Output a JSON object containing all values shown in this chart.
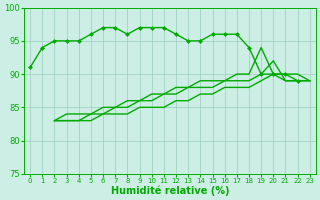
{
  "x": [
    0,
    1,
    2,
    3,
    4,
    5,
    6,
    7,
    8,
    9,
    10,
    11,
    12,
    13,
    14,
    15,
    16,
    17,
    18,
    19,
    20,
    21,
    22,
    23
  ],
  "series1": [
    91,
    94,
    95,
    95,
    95,
    96,
    97,
    97,
    96,
    97,
    97,
    97,
    96,
    95,
    95,
    96,
    96,
    96,
    94,
    90,
    90,
    90,
    89,
    null
  ],
  "series2": [
    null,
    null,
    83,
    84,
    84,
    84,
    85,
    85,
    86,
    86,
    87,
    87,
    88,
    88,
    89,
    89,
    89,
    90,
    90,
    94,
    90,
    90,
    90,
    89
  ],
  "series3": [
    null,
    null,
    83,
    83,
    83,
    84,
    84,
    85,
    85,
    86,
    86,
    87,
    87,
    88,
    88,
    88,
    89,
    89,
    89,
    90,
    92,
    89,
    89,
    89
  ],
  "series4": [
    null,
    null,
    83,
    83,
    83,
    83,
    84,
    84,
    84,
    85,
    85,
    85,
    86,
    86,
    87,
    87,
    88,
    88,
    88,
    89,
    90,
    89,
    89,
    89
  ],
  "line_color": "#00aa00",
  "marker_color": "#00aa00",
  "bg_color": "#cceee4",
  "grid_color": "#99ccbb",
  "axis_color": "#00aa00",
  "xlabel": "Humidité relative (%)",
  "ylim": [
    75,
    100
  ],
  "xlim": [
    -0.5,
    23.5
  ],
  "yticks": [
    75,
    80,
    85,
    90,
    95,
    100
  ],
  "xticks": [
    0,
    1,
    2,
    3,
    4,
    5,
    6,
    7,
    8,
    9,
    10,
    11,
    12,
    13,
    14,
    15,
    16,
    17,
    18,
    19,
    20,
    21,
    22,
    23
  ]
}
